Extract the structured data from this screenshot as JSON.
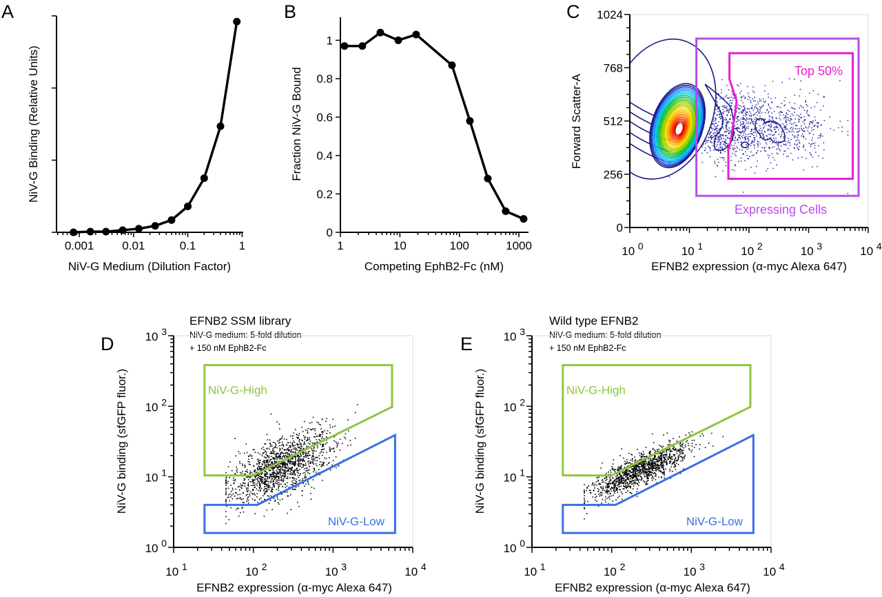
{
  "panel_letters": [
    "A",
    "B",
    "C",
    "D",
    "E"
  ],
  "chart_data": [
    {
      "panel": "A",
      "type": "line",
      "xlabel": "NiV-G Medium (Dilution Factor)",
      "ylabel": "NiV-G Binding (Relative Units)",
      "xscale": "log",
      "xlim": [
        0.00038,
        1.05
      ],
      "ylim": [
        0,
        3
      ],
      "x_ticks": [
        0.001,
        0.01,
        0.1,
        1
      ],
      "x_tick_labels": [
        "0.001",
        "0.01",
        "0.1",
        "1"
      ],
      "y_ticks": [
        0,
        1,
        2,
        3
      ],
      "grid": false,
      "x": [
        0.00078,
        0.0016,
        0.0031,
        0.0063,
        0.0125,
        0.025,
        0.05,
        0.1,
        0.2,
        0.4,
        0.8
      ],
      "y": [
        0.0,
        0.01,
        0.01,
        0.03,
        0.05,
        0.09,
        0.17,
        0.36,
        0.75,
        1.47,
        2.92
      ],
      "color": "#000000"
    },
    {
      "panel": "B",
      "type": "line",
      "xlabel": "Competing EphB2-Fc (nM)",
      "ylabel": "Fraction NiV-G Bound",
      "xscale": "log",
      "xlim": [
        1,
        1450
      ],
      "ylim": [
        0,
        1.12
      ],
      "x_ticks": [
        1,
        10,
        100,
        1000
      ],
      "x_tick_labels": [
        "1",
        "10",
        "100",
        "1000"
      ],
      "y_ticks": [
        0,
        0.2,
        0.4,
        0.6,
        0.8,
        1
      ],
      "y_tick_labels": [
        "0",
        "0.2",
        "0.4",
        "0.6",
        "0.8",
        "1"
      ],
      "grid": false,
      "x": [
        1.17,
        2.34,
        4.69,
        9.4,
        18.75,
        75,
        150,
        300,
        600,
        1200
      ],
      "y": [
        0.97,
        0.97,
        1.04,
        1.0,
        1.03,
        0.87,
        0.58,
        0.28,
        0.11,
        0.07
      ],
      "color": "#000000"
    },
    {
      "panel": "C",
      "type": "contour",
      "xlabel": "EFNB2 expression (α-myc Alexa 647)",
      "ylabel": "Forward Scatter-A",
      "xscale": "log",
      "xlim": [
        1,
        10000
      ],
      "ylim": [
        0,
        1024
      ],
      "x_tick_labels": [
        {
          "base": "10",
          "exp": "0"
        },
        {
          "base": "10",
          "exp": "1"
        },
        {
          "base": "10",
          "exp": "2"
        },
        {
          "base": "10",
          "exp": "3"
        },
        {
          "base": "10",
          "exp": "4"
        }
      ],
      "y_ticks": [
        0,
        256,
        512,
        768,
        1024
      ],
      "y_tick_labels": [
        "0",
        "256",
        "512",
        "768",
        "1024"
      ],
      "grid": false,
      "density_peak": {
        "x": 6.3,
        "y": 490
      },
      "contour_colors": [
        "#1a1a8c",
        "#1f3fd0",
        "#1e90ff",
        "#00c8e0",
        "#00c070",
        "#3cc020",
        "#a0d000",
        "#f0e000",
        "#ffb000",
        "#ff7000",
        "#ff3000",
        "#e00000"
      ],
      "event_color": "#23239a",
      "gates": [
        {
          "name": "Expressing Cells",
          "color": "#b44cf0",
          "vertices": [
            [
              13.1,
              908
            ],
            [
              6900,
              908
            ],
            [
              6900,
              152
            ],
            [
              13.1,
              152
            ]
          ]
        },
        {
          "name": "Top 50%",
          "color": "#e81ed2",
          "vertices": [
            [
              47,
              838
            ],
            [
              5500,
              838
            ],
            [
              5500,
              234
            ],
            [
              45,
              234
            ],
            [
              45,
              376
            ],
            [
              48.7,
              409
            ],
            [
              58,
              541
            ],
            [
              62,
              608
            ],
            [
              47,
              713
            ]
          ]
        }
      ]
    },
    {
      "panel": "D",
      "type": "scatter",
      "title": "EFNB2 SSM library",
      "subtitle": [
        "NiV-G medium: 5-fold dilution",
        "+ 150 nM EphB2-Fc"
      ],
      "xlabel": "EFNB2 expression (α-myc Alexa 647)",
      "ylabel": "NiV-G binding (sfGFP fluor.)",
      "xscale": "log",
      "yscale": "log",
      "xlim": [
        10,
        10000
      ],
      "ylim": [
        1,
        1000
      ],
      "x_tick_labels": [
        {
          "base": "10",
          "exp": "1"
        },
        {
          "base": "10",
          "exp": "2"
        },
        {
          "base": "10",
          "exp": "3"
        },
        {
          "base": "10",
          "exp": "4"
        }
      ],
      "y_tick_labels": [
        {
          "base": "10",
          "exp": "0"
        },
        {
          "base": "10",
          "exp": "1"
        },
        {
          "base": "10",
          "exp": "2"
        },
        {
          "base": "10",
          "exp": "3"
        }
      ],
      "grid": false,
      "point_color": "#000000",
      "gates": [
        {
          "name": "NiV-G-High",
          "color": "#8cc63f",
          "vertices": [
            [
              24.4,
              383
            ],
            [
              5500,
              383
            ],
            [
              5500,
              98
            ],
            [
              98,
              10.4
            ],
            [
              24.4,
              10.5
            ]
          ]
        },
        {
          "name": "NiV-G-Low",
          "color": "#3a6ee8",
          "vertices": [
            [
              24.4,
              4.0
            ],
            [
              112,
              4.0
            ],
            [
              6000,
              39
            ],
            [
              6000,
              1.6
            ],
            [
              24.4,
              1.6
            ]
          ]
        }
      ]
    },
    {
      "panel": "E",
      "type": "scatter",
      "title": "Wild type EFNB2",
      "subtitle": [
        "NiV-G medium: 5-fold dilution",
        "+ 150 nM EphB2-Fc"
      ],
      "xlabel": "EFNB2 expression (α-myc Alexa 647)",
      "ylabel": "NiV-G binding (sfGFP fluor.)",
      "xscale": "log",
      "yscale": "log",
      "xlim": [
        10,
        10000
      ],
      "ylim": [
        1,
        1000
      ],
      "x_tick_labels": [
        {
          "base": "10",
          "exp": "1"
        },
        {
          "base": "10",
          "exp": "2"
        },
        {
          "base": "10",
          "exp": "3"
        },
        {
          "base": "10",
          "exp": "4"
        }
      ],
      "y_tick_labels": [
        {
          "base": "10",
          "exp": "0"
        },
        {
          "base": "10",
          "exp": "1"
        },
        {
          "base": "10",
          "exp": "2"
        },
        {
          "base": "10",
          "exp": "3"
        }
      ],
      "grid": false,
      "point_color": "#000000",
      "gates": [
        {
          "name": "NiV-G-High",
          "color": "#8cc63f",
          "vertices": [
            [
              24.4,
              383
            ],
            [
              5500,
              383
            ],
            [
              5500,
              98
            ],
            [
              98,
              10.4
            ],
            [
              24.4,
              10.5
            ]
          ]
        },
        {
          "name": "NiV-G-Low",
          "color": "#3a6ee8",
          "vertices": [
            [
              24.4,
              4.0
            ],
            [
              112,
              4.0
            ],
            [
              6000,
              39
            ],
            [
              6000,
              1.6
            ],
            [
              24.4,
              1.6
            ]
          ]
        }
      ]
    }
  ]
}
